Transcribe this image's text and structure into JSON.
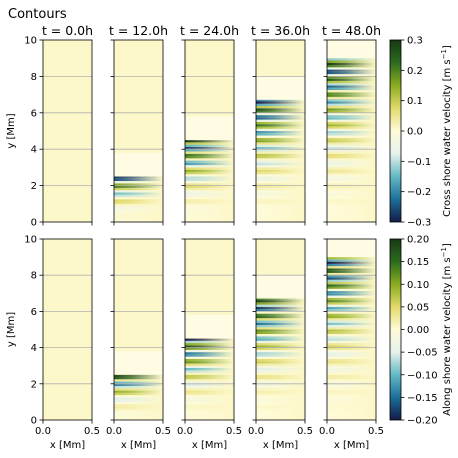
{
  "figure": {
    "title": "Contours"
  },
  "chart_data": {
    "type": "heatmap",
    "panel_titles": [
      "$t = 0.0$h",
      "$t = 12.0$h",
      "$t = 24.0$h",
      "$t = 36.0$h",
      "$t = 48.0$h"
    ],
    "panel_title_display": [
      "t = 0.0h",
      "t = 12.0h",
      "t = 24.0h",
      "t = 36.0h",
      "t = 48.0h"
    ],
    "times_h": [
      0,
      12,
      24,
      36,
      48
    ],
    "xlabel": "x [Mm]",
    "ylabel": "y [Mm]",
    "xlim": [
      0,
      0.5
    ],
    "ylim": [
      0,
      10
    ],
    "xticks": [
      "0.0",
      "0.5"
    ],
    "yticks": [
      "0",
      "2",
      "4",
      "6",
      "8",
      "10"
    ],
    "grid": "horizontal",
    "wave_front_y_Mm": [
      0,
      2.5,
      4.5,
      6.7,
      9.0
    ],
    "rows": [
      {
        "name": "cross_shore",
        "colorbar_label": "Cross shore water velocity [m s$^{-1}$]",
        "colorbar_label_display": "Cross shore water velocity [m s",
        "colorbar_label_sup": "−1",
        "colorbar_label_end": "]",
        "vmin": -0.3,
        "vmax": 0.3,
        "ticks": [
          "−0.3",
          "−0.2",
          "−0.1",
          "0.0",
          "0.1",
          "0.2",
          "0.3"
        ]
      },
      {
        "name": "along_shore",
        "colorbar_label": "Along shore water velocity [m s$^{-1}$]",
        "colorbar_label_display": "Along shore water velocity [m s",
        "colorbar_label_sup": "−1",
        "colorbar_label_end": "]",
        "vmin": -0.2,
        "vmax": 0.2,
        "ticks": [
          "−0.20",
          "−0.15",
          "−0.10",
          "−0.05",
          "0.00",
          "0.05",
          "0.10",
          "0.15",
          "0.20"
        ]
      }
    ],
    "colormap": [
      "#141b48",
      "#1d6f99",
      "#63b9c4",
      "#e6f2ec",
      "#fffbd9",
      "#e3da6b",
      "#8aac1f",
      "#2c6b1f",
      "#173a12"
    ]
  }
}
